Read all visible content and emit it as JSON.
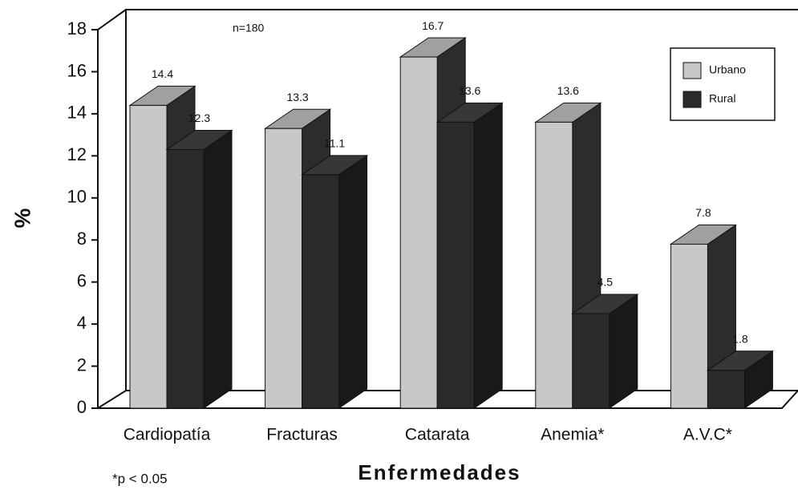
{
  "chart_data": {
    "type": "bar3d",
    "categories": [
      "Cardiopatía",
      "Fracturas",
      "Catarata",
      "Anemia*",
      "A.V.C*"
    ],
    "series": [
      {
        "name": "Urbano",
        "color": "#c8c8c8",
        "values": [
          14.4,
          13.3,
          16.7,
          13.6,
          7.8
        ]
      },
      {
        "name": "Rural",
        "color": "#2a2a2a",
        "values": [
          12.3,
          11.1,
          13.6,
          4.5,
          1.8
        ]
      }
    ],
    "ylim": [
      0,
      18
    ],
    "yticks": [
      0,
      2,
      4,
      6,
      8,
      10,
      12,
      14,
      16,
      18
    ],
    "x_label": "Enfermedades",
    "y_label": "%",
    "annotations": [
      "n=180",
      "*p < 0.05"
    ],
    "legend": "upper right"
  }
}
